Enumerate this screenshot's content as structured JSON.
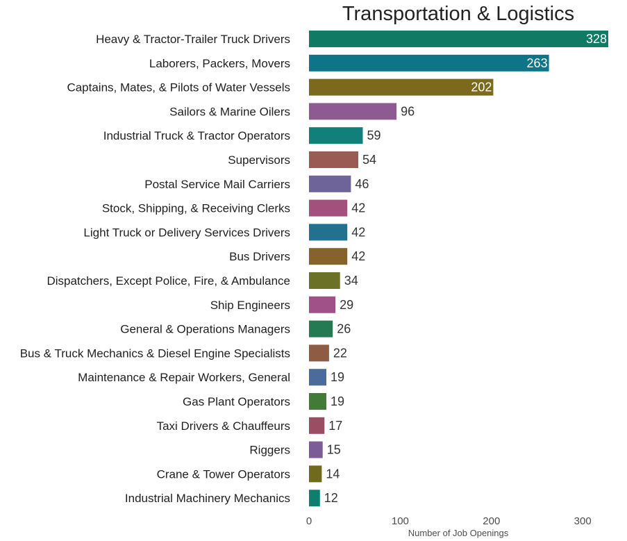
{
  "chart_data": {
    "type": "bar",
    "orientation": "horizontal",
    "title": "Transportation & Logistics",
    "xlabel": "Number of Job Openings",
    "ylabel": "",
    "xlim": [
      0,
      330
    ],
    "xticks": [
      0,
      100,
      200,
      300
    ],
    "grid": false,
    "categories": [
      "Heavy & Tractor-Trailer Truck Drivers",
      "Laborers, Packers, Movers",
      "Captains, Mates, & Pilots of Water Vessels",
      "Sailors & Marine Oilers",
      "Industrial Truck & Tractor Operators",
      "Supervisors",
      "Postal Service Mail Carriers",
      "Stock, Shipping, & Receiving Clerks",
      "Light Truck or Delivery Services Drivers",
      "Bus Drivers",
      "Dispatchers, Except Police, Fire, & Ambulance",
      "Ship Engineers",
      "General & Operations Managers",
      "Bus & Truck Mechanics & Diesel Engine Specialists",
      "Maintenance & Repair Workers, General",
      "Gas Plant Operators",
      "Taxi Drivers & Chauffeurs",
      "Riggers",
      "Crane & Tower Operators",
      "Industrial Machinery Mechanics"
    ],
    "values": [
      328,
      263,
      202,
      96,
      59,
      54,
      46,
      42,
      42,
      42,
      34,
      29,
      26,
      22,
      19,
      19,
      17,
      15,
      14,
      12
    ],
    "colors": [
      "#117a65",
      "#0e7588",
      "#7b6a1d",
      "#8e5a92",
      "#108078",
      "#9b5b55",
      "#6e6499",
      "#a2517d",
      "#23718f",
      "#86622d",
      "#6b7228",
      "#a05288",
      "#247a52",
      "#8d5c42",
      "#4b6c9b",
      "#447a38",
      "#9b4e63",
      "#7b5c98",
      "#6f6a1c",
      "#0e7e6f"
    ],
    "label_colors": {
      "inside": "#ffffff",
      "outside": "#333333"
    }
  }
}
